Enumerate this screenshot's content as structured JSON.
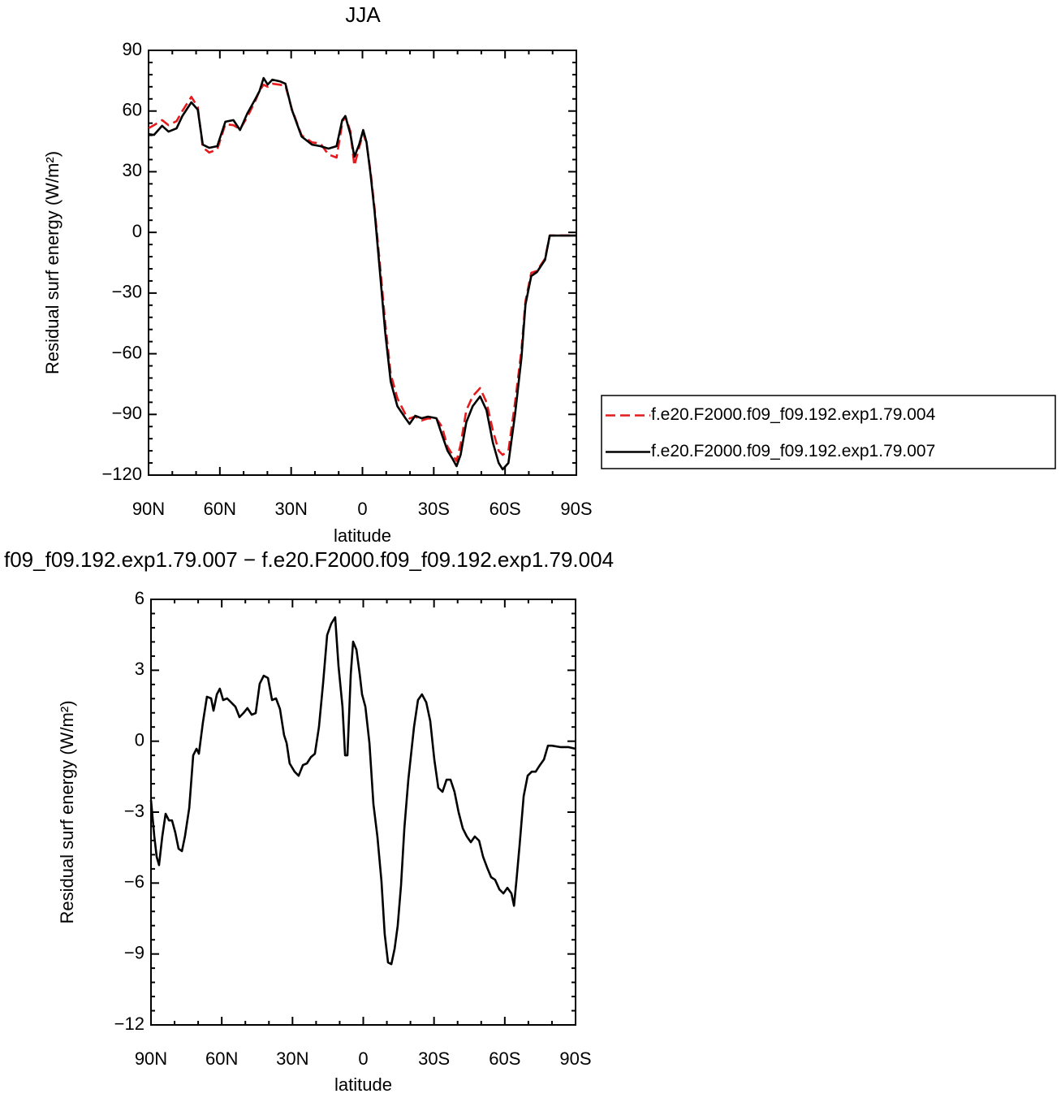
{
  "chart_data": [
    {
      "type": "line",
      "title": "JJA",
      "xlabel": "latitude",
      "ylabel": "Residual surf energy (W/m²)",
      "xlim": [
        90,
        -90
      ],
      "ylim": [
        -120,
        90
      ],
      "xticks": [
        {
          "value": 90,
          "label": "90N"
        },
        {
          "value": 60,
          "label": "60N"
        },
        {
          "value": 30,
          "label": "30N"
        },
        0,
        {
          "value": -30,
          "label": "30S"
        },
        {
          "value": -60,
          "label": "60S"
        },
        {
          "value": -90,
          "label": "90S"
        }
      ],
      "yticks": [
        90,
        60,
        30,
        0,
        {
          "value": -30,
          "label": "−30"
        },
        {
          "value": -60,
          "label": "−60"
        },
        {
          "value": -90,
          "label": "−90"
        },
        {
          "value": -120,
          "label": "−120"
        }
      ],
      "x": [
        90,
        87.7,
        84.3,
        81.6,
        78.2,
        75.8,
        72.0,
        69.3,
        67.2,
        64.5,
        61.1,
        57.7,
        54.3,
        51.5,
        48.5,
        45.1,
        43.3,
        41.6,
        39.9,
        37.9,
        34.8,
        32.4,
        29.7,
        25.6,
        21.2,
        17.7,
        14.3,
        10.9,
        8.5,
        7.2,
        5.1,
        3.4,
        1.4,
        -0.3,
        -1.7,
        -3.4,
        -5.1,
        -7.2,
        -9.6,
        -11.9,
        -14.7,
        -18.1,
        -19.8,
        -22.2,
        -24.9,
        -27.6,
        -31.1,
        -33.4,
        -35.8,
        -37.9,
        -39.6,
        -41.3,
        -43.7,
        -46.4,
        -49.5,
        -52.2,
        -54.9,
        -57.3,
        -59.0,
        -61.4,
        -64.2,
        -66.9,
        -68.6,
        -71.0,
        -73.4,
        -76.8,
        -78.8,
        -82.9,
        -90
      ],
      "series": [
        {
          "name": "f.e20.F2000.f09_f09.192.exp1.79.004",
          "color": "#e41a1c",
          "style": "dashed",
          "values": [
            51.5,
            53,
            55.5,
            53,
            55,
            60,
            67,
            62,
            42,
            39.5,
            41,
            53.5,
            53,
            51,
            57,
            65,
            70,
            73,
            72,
            73.5,
            73,
            72.5,
            61,
            48,
            44.5,
            44,
            38.5,
            37,
            54,
            57.5,
            50,
            33,
            42,
            49,
            44,
            30,
            12,
            -14,
            -45,
            -70,
            -82,
            -90,
            -92,
            -91,
            -93,
            -92,
            -92,
            -96,
            -106,
            -110,
            -113,
            -105,
            -88,
            -81,
            -77,
            -84,
            -98,
            -108,
            -110,
            -108,
            -84,
            -58,
            -34,
            -20,
            -19,
            -13,
            -1.5,
            -1.5,
            -1.5
          ]
        },
        {
          "name": "f.e20.F2000.f09_f09.192.exp1.79.007",
          "color": "#000000",
          "style": "solid",
          "values": [
            48.6,
            48.2,
            52.7,
            49.8,
            51.4,
            57.5,
            64.3,
            60.7,
            43.4,
            41.8,
            42.6,
            54.7,
            55.5,
            50.6,
            58.7,
            65.9,
            69.9,
            76.3,
            73.1,
            75.5,
            74.7,
            73.5,
            60.7,
            47.4,
            43.4,
            42.6,
            41.4,
            42.6,
            55.5,
            57.5,
            48.6,
            37.4,
            43.4,
            50.6,
            44.6,
            28.6,
            10.5,
            -17.6,
            -49.7,
            -73.8,
            -85.9,
            -91.9,
            -94.7,
            -90.7,
            -91.9,
            -91.1,
            -91.9,
            -99.9,
            -108,
            -112,
            -115.6,
            -110,
            -93.9,
            -85.9,
            -81.1,
            -87.9,
            -104,
            -114,
            -117.2,
            -114,
            -89.9,
            -61.8,
            -35.7,
            -21.6,
            -19.6,
            -13.6,
            -1.6,
            -1.6,
            -1.6
          ]
        }
      ]
    },
    {
      "type": "line",
      "title": "f09_f09.192.exp1.79.007 − f.e20.F2000.f09_f09.192.exp1.79.004",
      "xlabel": "latitude",
      "ylabel": "Residual surf energy (W/m²)",
      "xlim": [
        90,
        -90
      ],
      "ylim": [
        -12,
        6
      ],
      "xticks": [
        {
          "value": 90,
          "label": "90N"
        },
        {
          "value": 60,
          "label": "60N"
        },
        {
          "value": 30,
          "label": "30N"
        },
        0,
        {
          "value": -30,
          "label": "30S"
        },
        {
          "value": -60,
          "label": "60S"
        },
        {
          "value": -90,
          "label": "90S"
        }
      ],
      "yticks": [
        6,
        3,
        0,
        {
          "value": -3,
          "label": "−3"
        },
        {
          "value": -6,
          "label": "−6"
        },
        {
          "value": -9,
          "label": "−9"
        },
        {
          "value": -12,
          "label": "−12"
        }
      ],
      "x": [
        90,
        88.6,
        87.6,
        86.6,
        85.2,
        83.8,
        82.4,
        81.1,
        79.7,
        78.3,
        76.9,
        75.6,
        73.8,
        72.1,
        70.7,
        69.7,
        68,
        66.3,
        64.5,
        63.5,
        62.1,
        60.8,
        59.4,
        57.7,
        56,
        54.2,
        52.5,
        50.8,
        49.1,
        47.3,
        45.6,
        43.9,
        42.2,
        40.4,
        38.7,
        37,
        35.3,
        33.6,
        32.5,
        31.2,
        29.1,
        27.4,
        25.6,
        23.9,
        22.2,
        20.5,
        18.8,
        17,
        15.3,
        13.6,
        11.9,
        10.5,
        8.8,
        7.7,
        6.7,
        5.3,
        4.3,
        2.9,
        1.5,
        0.5,
        -0.9,
        -2.6,
        -4.3,
        -6,
        -7.7,
        -9.1,
        -10.5,
        -11.9,
        -13.3,
        -14.6,
        -16,
        -17.4,
        -19.1,
        -21.5,
        -23.2,
        -24.9,
        -26.7,
        -28.4,
        -30.1,
        -31.8,
        -33.6,
        -35.3,
        -37,
        -38.7,
        -40.4,
        -42.2,
        -43.9,
        -45.6,
        -47.3,
        -49.1,
        -50.8,
        -52.5,
        -54.2,
        -55.9,
        -57.7,
        -59.4,
        -61.1,
        -62.8,
        -63.9,
        -64.9,
        -66.3,
        -68,
        -69.7,
        -71.4,
        -73.1,
        -74.9,
        -76.6,
        -78.3,
        -80,
        -83.5,
        -86.9,
        -90
      ],
      "series": [
        {
          "color": "#000000",
          "style": "solid",
          "values": [
            -2.49,
            -4.03,
            -4.89,
            -5.24,
            -4.03,
            -3.07,
            -3.35,
            -3.35,
            -3.86,
            -4.55,
            -4.65,
            -4.03,
            -2.83,
            -0.6,
            -0.32,
            -0.53,
            0.78,
            1.88,
            1.81,
            1.29,
            1.98,
            2.22,
            1.74,
            1.81,
            1.64,
            1.46,
            1.02,
            1.19,
            1.4,
            1.12,
            1.19,
            2.43,
            2.77,
            2.67,
            1.74,
            1.81,
            1.36,
            0.26,
            -0.08,
            -0.94,
            -1.29,
            -1.46,
            -1.01,
            -0.94,
            -0.67,
            -0.53,
            0.6,
            2.49,
            4.49,
            4.97,
            5.24,
            3.18,
            1.46,
            -0.6,
            -0.6,
            2.84,
            4.21,
            3.87,
            2.84,
            1.98,
            1.46,
            -0.08,
            -2.66,
            -4.03,
            -5.92,
            -8.16,
            -9.36,
            -9.43,
            -8.78,
            -7.81,
            -6.1,
            -3.69,
            -1.63,
            0.6,
            1.74,
            1.98,
            1.64,
            0.85,
            -0.77,
            -1.97,
            -2.14,
            -1.63,
            -1.63,
            -2.14,
            -3.0,
            -3.69,
            -4.03,
            -4.27,
            -4.03,
            -4.21,
            -4.89,
            -5.34,
            -5.75,
            -5.86,
            -6.27,
            -6.44,
            -6.2,
            -6.44,
            -6.96,
            -5.92,
            -4.38,
            -2.32,
            -1.46,
            -1.29,
            -1.29,
            -1.01,
            -0.77,
            -0.19,
            -0.19,
            -0.25,
            -0.25,
            -0.32
          ]
        }
      ]
    }
  ]
}
